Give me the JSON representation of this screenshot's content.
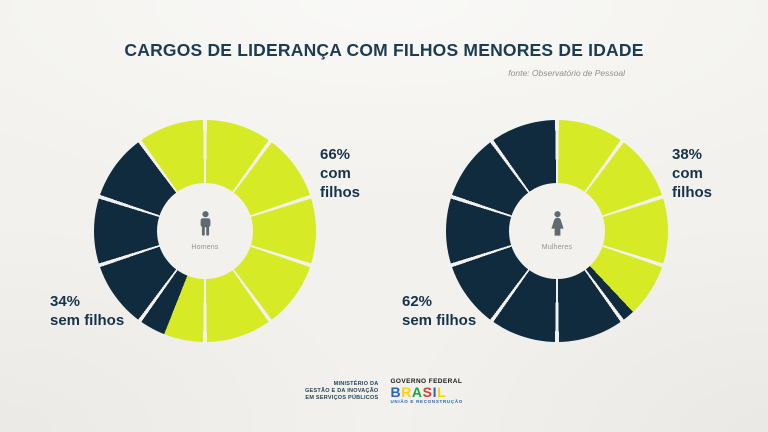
{
  "page": {
    "title": "CARGOS DE LIDERANÇA COM FILHOS MENORES DE IDADE",
    "source": "fonte: Observatório de Pessoal"
  },
  "colors": {
    "lime": "#D6EA26",
    "navy": "#112B3E",
    "heading": "#1C3C50",
    "background": "#F2F1ED",
    "icon_gray": "#5F6B73"
  },
  "chart_data": [
    {
      "type": "pie",
      "title": "Homens",
      "center_label": "Homens",
      "center_icon": "man-icon",
      "segments": 10,
      "start_angle_deg": -36,
      "slices": [
        {
          "name": "com filhos",
          "pct": 66,
          "color": "#D6EA26"
        },
        {
          "name": "sem filhos",
          "pct": 34,
          "color": "#112B3E"
        }
      ],
      "callouts": {
        "com": {
          "value": "66%",
          "label": "com filhos"
        },
        "sem": {
          "value": "34%",
          "label": "sem filhos"
        }
      }
    },
    {
      "type": "pie",
      "title": "Mulheres",
      "center_label": "Mulheres",
      "center_icon": "woman-icon",
      "segments": 10,
      "start_angle_deg": 0,
      "slices": [
        {
          "name": "com filhos",
          "pct": 38,
          "color": "#D6EA26"
        },
        {
          "name": "sem filhos",
          "pct": 62,
          "color": "#112B3E"
        }
      ],
      "callouts": {
        "com": {
          "value": "38%",
          "label": "com filhos"
        },
        "sem": {
          "value": "62%",
          "label": "sem filhos"
        }
      }
    }
  ],
  "footer": {
    "ministry_lines": [
      "MINISTÉRIO DA",
      "GESTÃO E DA INOVAÇÃO",
      "EM SERVIÇOS PÚBLICOS"
    ],
    "governo": "GOVERNO FEDERAL",
    "brasil_letters": [
      {
        "ch": "B",
        "color": "#2563C9"
      },
      {
        "ch": "R",
        "color": "#FFD200"
      },
      {
        "ch": "A",
        "color": "#14A44D"
      },
      {
        "ch": "S",
        "color": "#E23B30"
      },
      {
        "ch": "I",
        "color": "#2563C9"
      },
      {
        "ch": "L",
        "color": "#FFD200"
      }
    ],
    "tagline": "UNIÃO E RECONSTRUÇÃO"
  }
}
